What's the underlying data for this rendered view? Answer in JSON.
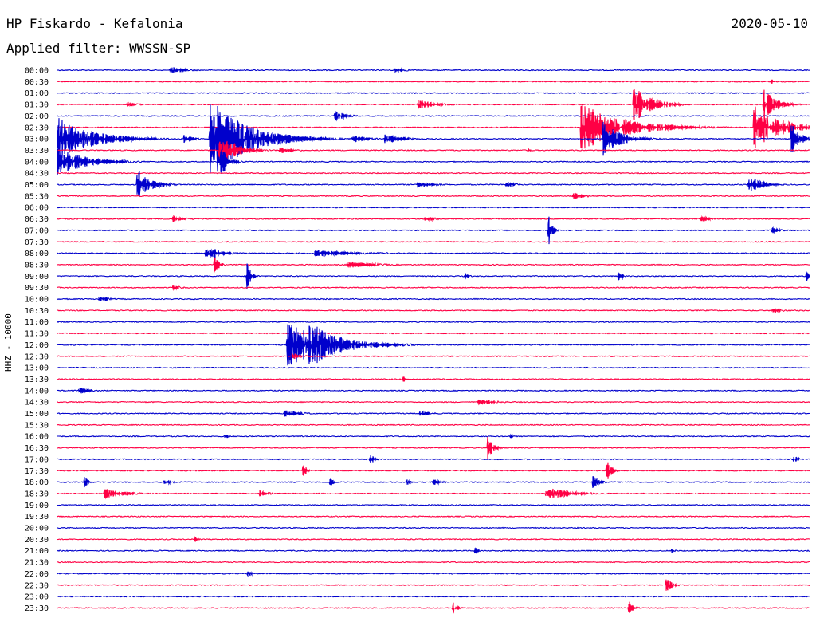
{
  "header": {
    "title": "HP Fiskardo - Kefalonia",
    "date": "2020-05-10",
    "filter": "Applied filter: WWSSN-SP",
    "channel_label": "HHZ - 10000"
  },
  "colors": {
    "even_rows": "#0000cc",
    "odd_rows": "#ff0044"
  },
  "chart_data": {
    "type": "line",
    "title": "HP Fiskardo - Kefalonia",
    "ylabel": "HHZ - 10000",
    "rows": [
      "00:00",
      "00:30",
      "01:00",
      "01:30",
      "02:00",
      "02:30",
      "03:00",
      "03:30",
      "04:00",
      "04:30",
      "05:00",
      "05:30",
      "06:00",
      "06:30",
      "07:00",
      "07:30",
      "08:00",
      "08:30",
      "09:00",
      "09:30",
      "10:00",
      "10:30",
      "11:00",
      "11:30",
      "12:00",
      "12:30",
      "13:00",
      "13:30",
      "14:00",
      "14:30",
      "15:00",
      "15:30",
      "16:00",
      "16:30",
      "17:00",
      "17:30",
      "18:00",
      "18:30",
      "19:00",
      "19:30",
      "20:00",
      "20:30",
      "21:00",
      "21:30",
      "22:00",
      "22:30",
      "23:00",
      "23:30"
    ],
    "x_range_minutes": [
      0,
      30
    ],
    "events": [
      {
        "row": 0,
        "minute": 4.5,
        "amp": 5,
        "dur": 1.2
      },
      {
        "row": 0,
        "minute": 13.5,
        "amp": 3,
        "dur": 1.0
      },
      {
        "row": 1,
        "minute": 28.5,
        "amp": 4,
        "dur": 0.2
      },
      {
        "row": 3,
        "minute": 2.8,
        "amp": 3,
        "dur": 1.0
      },
      {
        "row": 3,
        "minute": 14.4,
        "amp": 6,
        "dur": 1.6
      },
      {
        "row": 3,
        "minute": 23.0,
        "amp": 24,
        "dur": 1.5
      },
      {
        "row": 3,
        "minute": 28.2,
        "amp": 20,
        "dur": 1.0
      },
      {
        "row": 4,
        "minute": 11.1,
        "amp": 6,
        "dur": 1.0
      },
      {
        "row": 5,
        "minute": 20.9,
        "amp": 30,
        "dur": 3.5
      },
      {
        "row": 5,
        "minute": 27.8,
        "amp": 28,
        "dur": 2.2
      },
      {
        "row": 6,
        "minute": 0.0,
        "amp": 28,
        "dur": 3.0
      },
      {
        "row": 6,
        "minute": 5.1,
        "amp": 5,
        "dur": 0.8
      },
      {
        "row": 6,
        "minute": 6.1,
        "amp": 52,
        "dur": 3.0
      },
      {
        "row": 6,
        "minute": 8.8,
        "amp": 6,
        "dur": 2.0
      },
      {
        "row": 6,
        "minute": 11.8,
        "amp": 5,
        "dur": 1.2
      },
      {
        "row": 6,
        "minute": 13.1,
        "amp": 6,
        "dur": 1.5
      },
      {
        "row": 6,
        "minute": 21.8,
        "amp": 22,
        "dur": 1.5
      },
      {
        "row": 6,
        "minute": 29.3,
        "amp": 18,
        "dur": 0.8
      },
      {
        "row": 7,
        "minute": 6.5,
        "amp": 18,
        "dur": 1.5
      },
      {
        "row": 7,
        "minute": 8.9,
        "amp": 4,
        "dur": 1.2
      },
      {
        "row": 7,
        "minute": 18.8,
        "amp": 4,
        "dur": 0.2
      },
      {
        "row": 8,
        "minute": 0.0,
        "amp": 18,
        "dur": 2.5
      },
      {
        "row": 8,
        "minute": 6.5,
        "amp": 22,
        "dur": 0.6
      },
      {
        "row": 10,
        "minute": 3.2,
        "amp": 18,
        "dur": 1.2
      },
      {
        "row": 10,
        "minute": 14.4,
        "amp": 4,
        "dur": 1.5
      },
      {
        "row": 10,
        "minute": 17.9,
        "amp": 4,
        "dur": 0.8
      },
      {
        "row": 10,
        "minute": 27.6,
        "amp": 10,
        "dur": 1.2
      },
      {
        "row": 11,
        "minute": 20.6,
        "amp": 4,
        "dur": 1.0
      },
      {
        "row": 13,
        "minute": 4.6,
        "amp": 4,
        "dur": 1.2
      },
      {
        "row": 13,
        "minute": 14.7,
        "amp": 4,
        "dur": 0.8
      },
      {
        "row": 13,
        "minute": 25.7,
        "amp": 4,
        "dur": 0.8
      },
      {
        "row": 14,
        "minute": 19.6,
        "amp": 20,
        "dur": 0.3
      },
      {
        "row": 14,
        "minute": 28.5,
        "amp": 4,
        "dur": 0.8
      },
      {
        "row": 16,
        "minute": 5.9,
        "amp": 7,
        "dur": 1.5
      },
      {
        "row": 16,
        "minute": 6.3,
        "amp": 10,
        "dur": 0.3
      },
      {
        "row": 16,
        "minute": 10.3,
        "amp": 4,
        "dur": 4.0
      },
      {
        "row": 17,
        "minute": 6.3,
        "amp": 12,
        "dur": 0.3
      },
      {
        "row": 17,
        "minute": 11.6,
        "amp": 4,
        "dur": 2.5
      },
      {
        "row": 18,
        "minute": 7.6,
        "amp": 22,
        "dur": 0.3
      },
      {
        "row": 18,
        "minute": 16.3,
        "amp": 4,
        "dur": 0.3
      },
      {
        "row": 18,
        "minute": 22.4,
        "amp": 8,
        "dur": 0.3
      },
      {
        "row": 18,
        "minute": 29.9,
        "amp": 6,
        "dur": 0.2
      },
      {
        "row": 19,
        "minute": 4.6,
        "amp": 3,
        "dur": 0.8
      },
      {
        "row": 20,
        "minute": 1.7,
        "amp": 3,
        "dur": 1.0
      },
      {
        "row": 21,
        "minute": 28.5,
        "amp": 4,
        "dur": 0.8
      },
      {
        "row": 24,
        "minute": 9.2,
        "amp": 28,
        "dur": 3.5
      },
      {
        "row": 24,
        "minute": 10.0,
        "amp": 32,
        "dur": 2.5
      },
      {
        "row": 25,
        "minute": 9.4,
        "amp": 4,
        "dur": 0.8
      },
      {
        "row": 27,
        "minute": 13.8,
        "amp": 4,
        "dur": 0.2
      },
      {
        "row": 28,
        "minute": 0.9,
        "amp": 4,
        "dur": 1.0
      },
      {
        "row": 29,
        "minute": 16.8,
        "amp": 3,
        "dur": 2.0
      },
      {
        "row": 30,
        "minute": 9.1,
        "amp": 4,
        "dur": 1.5
      },
      {
        "row": 30,
        "minute": 14.5,
        "amp": 3,
        "dur": 1.0
      },
      {
        "row": 32,
        "minute": 6.7,
        "amp": 3,
        "dur": 0.4
      },
      {
        "row": 32,
        "minute": 18.1,
        "amp": 3,
        "dur": 0.2
      },
      {
        "row": 33,
        "minute": 17.2,
        "amp": 18,
        "dur": 0.4
      },
      {
        "row": 34,
        "minute": 12.5,
        "amp": 6,
        "dur": 0.4
      },
      {
        "row": 34,
        "minute": 29.4,
        "amp": 5,
        "dur": 0.3
      },
      {
        "row": 35,
        "minute": 9.8,
        "amp": 10,
        "dur": 0.3
      },
      {
        "row": 35,
        "minute": 21.9,
        "amp": 16,
        "dur": 0.4
      },
      {
        "row": 36,
        "minute": 1.1,
        "amp": 8,
        "dur": 0.3
      },
      {
        "row": 36,
        "minute": 4.3,
        "amp": 4,
        "dur": 0.6
      },
      {
        "row": 36,
        "minute": 10.9,
        "amp": 5,
        "dur": 0.3
      },
      {
        "row": 36,
        "minute": 14.0,
        "amp": 4,
        "dur": 0.2
      },
      {
        "row": 36,
        "minute": 15.0,
        "amp": 4,
        "dur": 0.8
      },
      {
        "row": 36,
        "minute": 21.4,
        "amp": 8,
        "dur": 0.5
      },
      {
        "row": 37,
        "minute": 1.9,
        "amp": 8,
        "dur": 1.5
      },
      {
        "row": 37,
        "minute": 8.1,
        "amp": 4,
        "dur": 0.8
      },
      {
        "row": 37,
        "minute": 19.5,
        "amp": 9,
        "dur": 2.0
      },
      {
        "row": 41,
        "minute": 5.5,
        "amp": 3,
        "dur": 0.4
      },
      {
        "row": 42,
        "minute": 16.7,
        "amp": 4,
        "dur": 0.3
      },
      {
        "row": 42,
        "minute": 24.5,
        "amp": 3,
        "dur": 0.3
      },
      {
        "row": 44,
        "minute": 7.6,
        "amp": 3,
        "dur": 0.5
      },
      {
        "row": 45,
        "minute": 24.3,
        "amp": 8,
        "dur": 0.5
      },
      {
        "row": 47,
        "minute": 15.8,
        "amp": 7,
        "dur": 0.4
      },
      {
        "row": 47,
        "minute": 22.8,
        "amp": 9,
        "dur": 0.4
      }
    ]
  }
}
